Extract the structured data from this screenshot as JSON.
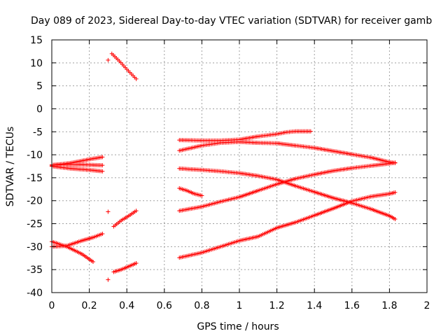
{
  "chart_data": {
    "type": "scatter",
    "title": "Day 089 of 2023, Sidereal Day-to-day VTEC variation (SDTVAR) for receiver gamb",
    "xlabel": "GPS time / hours",
    "ylabel": "SDTVAR / TECUs",
    "xlim": [
      0,
      2
    ],
    "ylim": [
      -40,
      15
    ],
    "xticks": [
      0,
      0.2,
      0.4,
      0.6,
      0.8,
      1,
      1.2,
      1.4,
      1.6,
      1.8,
      2
    ],
    "xtick_labels": [
      "0",
      "0.2",
      "0.4",
      "0.6",
      "0.8",
      "1",
      "1.2",
      "1.4",
      "1.6",
      "1.8",
      "2"
    ],
    "yticks": [
      -40,
      -35,
      -30,
      -25,
      -20,
      -15,
      -10,
      -5,
      0,
      5,
      10,
      15
    ],
    "ytick_labels": [
      "-40",
      "-35",
      "-30",
      "-25",
      "-20",
      "-15",
      "-10",
      "-5",
      "0",
      "5",
      "10",
      "15"
    ],
    "grid": true,
    "marker": "+",
    "color": "#ff0000",
    "series": [
      {
        "name": "arc-a1",
        "x": [
          0,
          0.1,
          0.2,
          0.27
        ],
        "y": [
          -12.2,
          -12.1,
          -12.2,
          -12.3
        ]
      },
      {
        "name": "arc-a2",
        "x": [
          0,
          0.1,
          0.2,
          0.27
        ],
        "y": [
          -12.3,
          -11.8,
          -11.0,
          -10.5
        ]
      },
      {
        "name": "arc-a3",
        "x": [
          0,
          0.1,
          0.2,
          0.27
        ],
        "y": [
          -12.5,
          -13.0,
          -13.3,
          -13.6
        ]
      },
      {
        "name": "arc-b1",
        "x": [
          0,
          0.08,
          0.16,
          0.22
        ],
        "y": [
          -28.9,
          -30.0,
          -31.6,
          -33.3
        ]
      },
      {
        "name": "arc-b2",
        "x": [
          0,
          0.08,
          0.16,
          0.22,
          0.27
        ],
        "y": [
          -30.0,
          -29.8,
          -28.7,
          -28.0,
          -27.2
        ]
      },
      {
        "name": "arc-c1",
        "x": [
          0.3
        ],
        "y": [
          10.6
        ]
      },
      {
        "name": "arc-c2",
        "x": [
          0.32,
          0.36,
          0.4,
          0.45
        ],
        "y": [
          12.0,
          10.4,
          8.6,
          6.5
        ]
      },
      {
        "name": "arc-d1",
        "x": [
          0.3
        ],
        "y": [
          -22.4
        ]
      },
      {
        "name": "arc-d2",
        "x": [
          0.33,
          0.37,
          0.41,
          0.45
        ],
        "y": [
          -25.6,
          -24.3,
          -23.3,
          -22.2
        ]
      },
      {
        "name": "arc-e1",
        "x": [
          0.3
        ],
        "y": [
          -37.2
        ]
      },
      {
        "name": "arc-e2",
        "x": [
          0.33,
          0.37,
          0.41,
          0.45
        ],
        "y": [
          -35.5,
          -35.0,
          -34.3,
          -33.6
        ]
      },
      {
        "name": "arc-f1",
        "x": [
          0.68,
          0.8,
          0.9,
          1.0,
          1.1,
          1.2,
          1.25,
          1.3,
          1.38
        ],
        "y": [
          -6.8,
          -6.9,
          -6.9,
          -6.7,
          -6.0,
          -5.5,
          -5.1,
          -4.9,
          -4.9
        ]
      },
      {
        "name": "arc-f2",
        "x": [
          0.68,
          0.8,
          0.9,
          1.0,
          1.1,
          1.2,
          1.3,
          1.4,
          1.5,
          1.6,
          1.7,
          1.8,
          1.83
        ],
        "y": [
          -9.1,
          -8.0,
          -7.4,
          -7.2,
          -7.4,
          -7.5,
          -8.0,
          -8.5,
          -9.2,
          -9.9,
          -10.6,
          -11.6,
          -11.8
        ]
      },
      {
        "name": "arc-g1",
        "x": [
          0.68,
          0.8,
          0.9,
          1.0,
          1.1,
          1.2,
          1.3,
          1.4,
          1.5,
          1.6,
          1.7,
          1.8,
          1.83
        ],
        "y": [
          -13.0,
          -13.3,
          -13.6,
          -14.0,
          -14.6,
          -15.4,
          -16.8,
          -18.1,
          -19.4,
          -20.5,
          -21.8,
          -23.3,
          -24.0
        ]
      },
      {
        "name": "arc-g2",
        "x": [
          0.68,
          0.8,
          0.9,
          1.0,
          1.1,
          1.2,
          1.3,
          1.4,
          1.5,
          1.6,
          1.7,
          1.8,
          1.83
        ],
        "y": [
          -22.2,
          -21.3,
          -20.2,
          -19.2,
          -17.8,
          -16.4,
          -15.2,
          -14.3,
          -13.5,
          -12.9,
          -12.4,
          -11.9,
          -11.7
        ]
      },
      {
        "name": "arc-h1",
        "x": [
          0.68,
          0.72,
          0.76,
          0.8
        ],
        "y": [
          -17.3,
          -17.8,
          -18.5,
          -18.9
        ]
      },
      {
        "name": "arc-i1",
        "x": [
          0.68,
          0.8,
          0.9,
          1.0,
          1.1,
          1.2,
          1.3,
          1.4,
          1.5,
          1.6,
          1.7,
          1.8,
          1.83
        ],
        "y": [
          -32.4,
          -31.3,
          -30.0,
          -28.7,
          -27.8,
          -25.9,
          -24.7,
          -23.2,
          -21.7,
          -20.1,
          -19.1,
          -18.5,
          -18.2
        ]
      }
    ]
  }
}
